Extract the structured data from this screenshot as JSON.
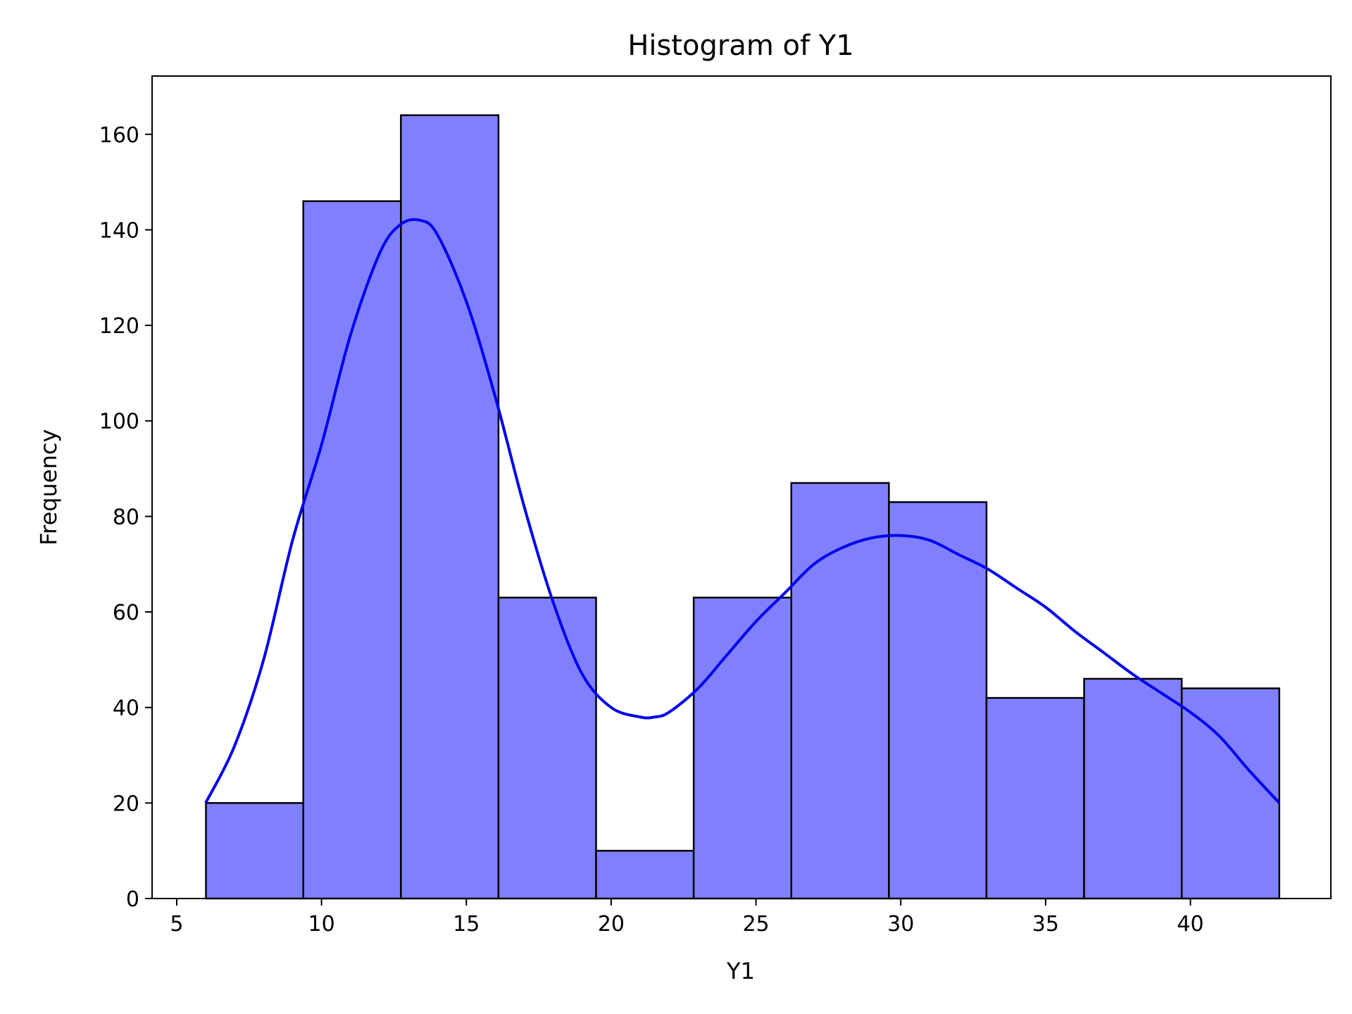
{
  "chart_data": {
    "type": "bar",
    "title": "Histogram of Y1",
    "xlabel": "Y1",
    "ylabel": "Frequency",
    "xlim": [
      4.15,
      44.85
    ],
    "ylim": [
      0,
      172.2
    ],
    "xticks": [
      5,
      10,
      15,
      20,
      25,
      30,
      35,
      40
    ],
    "yticks": [
      0,
      20,
      40,
      60,
      80,
      100,
      120,
      140,
      160
    ],
    "bin_edges": [
      6.01,
      9.37,
      12.74,
      16.11,
      19.48,
      22.85,
      26.22,
      29.59,
      32.96,
      36.33,
      39.7,
      43.07
    ],
    "counts": [
      20,
      146,
      164,
      63,
      10,
      63,
      87,
      83,
      42,
      46,
      44
    ],
    "kde": {
      "x": [
        6.0,
        7.0,
        8.0,
        9.0,
        10.0,
        11.0,
        12.0,
        12.7,
        13.4,
        14.0,
        15.0,
        16.0,
        17.0,
        18.0,
        19.0,
        20.0,
        21.0,
        21.5,
        22.0,
        23.0,
        24.0,
        25.0,
        26.0,
        27.0,
        28.0,
        29.0,
        30.0,
        31.0,
        32.0,
        33.0,
        34.0,
        35.0,
        36.0,
        37.0,
        38.0,
        39.0,
        40.0,
        41.0,
        42.0,
        43.07
      ],
      "y": [
        20,
        32,
        50,
        75,
        95,
        118,
        135,
        141,
        142,
        139,
        125,
        105,
        82,
        62,
        47,
        40,
        38,
        38,
        39,
        44,
        51,
        58,
        64,
        70,
        73.5,
        75.5,
        76,
        75,
        72,
        69,
        65,
        61,
        56,
        51.5,
        47,
        43,
        39,
        34,
        27,
        20
      ]
    },
    "bar_fill": "#8080ff",
    "bar_edge": "#000000",
    "kde_color": "#0000ee",
    "grid": false,
    "legend": "none"
  }
}
